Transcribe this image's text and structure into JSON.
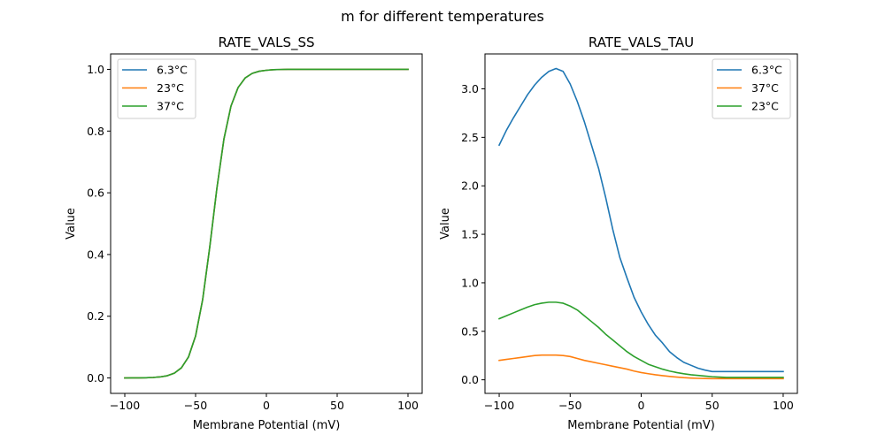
{
  "figure": {
    "suptitle": "m for different temperatures"
  },
  "colors": {
    "c0": "#1f77b4",
    "c1": "#ff7f0e",
    "c2": "#2ca02c"
  },
  "chart_data": [
    {
      "type": "line",
      "title": "RATE_VALS_SS",
      "xlabel": "Membrane Potential (mV)",
      "ylabel": "Value",
      "xlim": [
        -110,
        110
      ],
      "ylim": [
        -0.05,
        1.05
      ],
      "xticks": [
        -100,
        -50,
        0,
        50,
        100
      ],
      "xtick_labels": [
        "−100",
        "−50",
        "0",
        "50",
        "100"
      ],
      "yticks": [
        0.0,
        0.2,
        0.4,
        0.6,
        0.8,
        1.0
      ],
      "ytick_labels": [
        "0.0",
        "0.2",
        "0.4",
        "0.6",
        "0.8",
        "1.0"
      ],
      "grid": false,
      "legend_position": "upper-left",
      "x": [
        -100,
        -95,
        -90,
        -85,
        -80,
        -75,
        -70,
        -65,
        -60,
        -55,
        -50,
        -45,
        -40,
        -35,
        -30,
        -25,
        -20,
        -15,
        -10,
        -5,
        0,
        5,
        10,
        15,
        20,
        25,
        30,
        35,
        40,
        45,
        50,
        55,
        60,
        65,
        70,
        75,
        80,
        85,
        90,
        95,
        100
      ],
      "series": [
        {
          "name": "6.3°C",
          "color_key": "c0",
          "values": [
            0.0001,
            0.0002,
            0.0003,
            0.0007,
            0.0016,
            0.0034,
            0.0072,
            0.0155,
            0.0329,
            0.068,
            0.136,
            0.254,
            0.424,
            0.613,
            0.774,
            0.881,
            0.941,
            0.972,
            0.987,
            0.994,
            0.997,
            0.999,
            0.9995,
            1.0,
            1.0,
            1.0,
            1.0,
            1.0,
            1.0,
            1.0,
            1.0,
            1.0,
            1.0,
            1.0,
            1.0,
            1.0,
            1.0,
            1.0,
            1.0,
            1.0,
            1.0
          ]
        },
        {
          "name": "23°C",
          "color_key": "c1",
          "values": [
            0.0001,
            0.0002,
            0.0003,
            0.0007,
            0.0016,
            0.0034,
            0.0072,
            0.0155,
            0.0329,
            0.068,
            0.136,
            0.254,
            0.424,
            0.613,
            0.774,
            0.881,
            0.941,
            0.972,
            0.987,
            0.994,
            0.997,
            0.999,
            0.9995,
            1.0,
            1.0,
            1.0,
            1.0,
            1.0,
            1.0,
            1.0,
            1.0,
            1.0,
            1.0,
            1.0,
            1.0,
            1.0,
            1.0,
            1.0,
            1.0,
            1.0,
            1.0
          ]
        },
        {
          "name": "37°C",
          "color_key": "c2",
          "values": [
            0.0001,
            0.0002,
            0.0003,
            0.0007,
            0.0016,
            0.0034,
            0.0072,
            0.0155,
            0.0329,
            0.068,
            0.136,
            0.254,
            0.424,
            0.613,
            0.774,
            0.881,
            0.941,
            0.972,
            0.987,
            0.994,
            0.997,
            0.999,
            0.9995,
            1.0,
            1.0,
            1.0,
            1.0,
            1.0,
            1.0,
            1.0,
            1.0,
            1.0,
            1.0,
            1.0,
            1.0,
            1.0,
            1.0,
            1.0,
            1.0,
            1.0,
            1.0
          ]
        }
      ]
    },
    {
      "type": "line",
      "title": "RATE_VALS_TAU",
      "xlabel": "Membrane Potential (mV)",
      "ylabel": "Value",
      "xlim": [
        -110,
        110
      ],
      "ylim": [
        -0.14,
        3.36
      ],
      "xticks": [
        -100,
        -50,
        0,
        50,
        100
      ],
      "xtick_labels": [
        "−100",
        "−50",
        "0",
        "50",
        "100"
      ],
      "yticks": [
        0.0,
        0.5,
        1.0,
        1.5,
        2.0,
        2.5,
        3.0
      ],
      "ytick_labels": [
        "0.0",
        "0.5",
        "1.0",
        "1.5",
        "2.0",
        "2.5",
        "3.0"
      ],
      "grid": false,
      "legend_position": "upper-right",
      "x": [
        -100,
        -95,
        -90,
        -85,
        -80,
        -75,
        -70,
        -65,
        -60,
        -55,
        -50,
        -45,
        -40,
        -35,
        -30,
        -25,
        -20,
        -15,
        -10,
        -5,
        0,
        5,
        10,
        15,
        20,
        25,
        30,
        35,
        40,
        45,
        50,
        55,
        60,
        65,
        70,
        75,
        80,
        85,
        90,
        95,
        100
      ],
      "series": [
        {
          "name": "6.3°C",
          "color_key": "c0",
          "values": [
            2.42,
            2.57,
            2.7,
            2.82,
            2.94,
            3.04,
            3.12,
            3.18,
            3.21,
            3.18,
            3.05,
            2.87,
            2.66,
            2.42,
            2.18,
            1.88,
            1.55,
            1.26,
            1.05,
            0.85,
            0.7,
            0.57,
            0.46,
            0.38,
            0.29,
            0.23,
            0.18,
            0.15,
            0.12,
            0.1,
            0.085,
            0.085,
            0.085,
            0.085,
            0.085,
            0.085,
            0.085,
            0.085,
            0.085,
            0.085,
            0.085
          ]
        },
        {
          "name": "37°C",
          "color_key": "c1",
          "values": [
            0.2,
            0.21,
            0.22,
            0.23,
            0.24,
            0.25,
            0.255,
            0.255,
            0.255,
            0.25,
            0.24,
            0.22,
            0.2,
            0.185,
            0.17,
            0.155,
            0.14,
            0.125,
            0.11,
            0.09,
            0.075,
            0.063,
            0.052,
            0.043,
            0.035,
            0.028,
            0.022,
            0.018,
            0.015,
            0.013,
            0.012,
            0.012,
            0.012,
            0.012,
            0.012,
            0.012,
            0.012,
            0.012,
            0.012,
            0.012,
            0.012
          ]
        },
        {
          "name": "23°C",
          "color_key": "c2",
          "values": [
            0.63,
            0.66,
            0.69,
            0.72,
            0.75,
            0.775,
            0.79,
            0.8,
            0.8,
            0.79,
            0.76,
            0.72,
            0.66,
            0.6,
            0.54,
            0.47,
            0.41,
            0.35,
            0.29,
            0.24,
            0.2,
            0.16,
            0.135,
            0.11,
            0.09,
            0.075,
            0.062,
            0.052,
            0.045,
            0.038,
            0.032,
            0.028,
            0.025,
            0.025,
            0.025,
            0.025,
            0.025,
            0.025,
            0.025,
            0.025,
            0.025
          ]
        }
      ]
    }
  ]
}
